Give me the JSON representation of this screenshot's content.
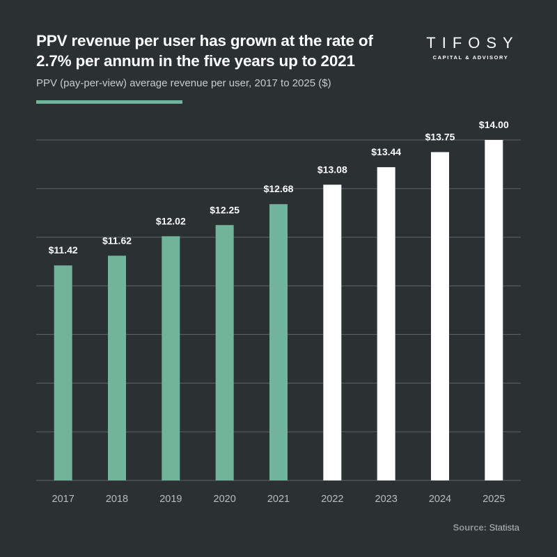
{
  "header": {
    "title": "PPV revenue per user has grown at the rate of 2.7% per annum in the five years up to 2021",
    "subtitle": "PPV (pay-per-view) average revenue per user, 2017 to 2025 ($)"
  },
  "logo": {
    "wordmark": "TIFOSY",
    "tagline": "CAPITAL & ADVISORY"
  },
  "source": {
    "label": "Source:",
    "value": "Statista"
  },
  "colors": {
    "background": "#2b3032",
    "historical_bar": "#72b39c",
    "forecast_bar": "#ffffff",
    "accent": "#72b39c",
    "gridline": "#5f6466",
    "tick_label": "#b9bdbf",
    "value_label": "#ffffff"
  },
  "chart_data": {
    "type": "bar",
    "title": "PPV revenue per user has grown at the rate of 2.7% per annum in the five years up to 2021",
    "subtitle": "PPV (pay-per-view) average revenue per user, 2017 to 2025 ($)",
    "xlabel": "",
    "ylabel": "",
    "categories": [
      "2017",
      "2018",
      "2019",
      "2020",
      "2021",
      "2022",
      "2023",
      "2024",
      "2025"
    ],
    "values": [
      11.42,
      11.62,
      12.02,
      12.25,
      12.68,
      13.08,
      13.44,
      13.75,
      14.0
    ],
    "value_labels": [
      "$11.42",
      "$11.62",
      "$12.02",
      "$12.25",
      "$12.68",
      "$13.08",
      "$13.44",
      "$13.75",
      "$14.00"
    ],
    "segment": [
      "historical",
      "historical",
      "historical",
      "historical",
      "historical",
      "forecast",
      "forecast",
      "forecast",
      "forecast"
    ],
    "ylim": [
      0,
      14
    ],
    "gridlines": [
      2,
      4,
      6,
      8,
      10,
      12,
      14
    ],
    "grid": true,
    "y_tick_labels_shown": false,
    "legend": "none"
  }
}
